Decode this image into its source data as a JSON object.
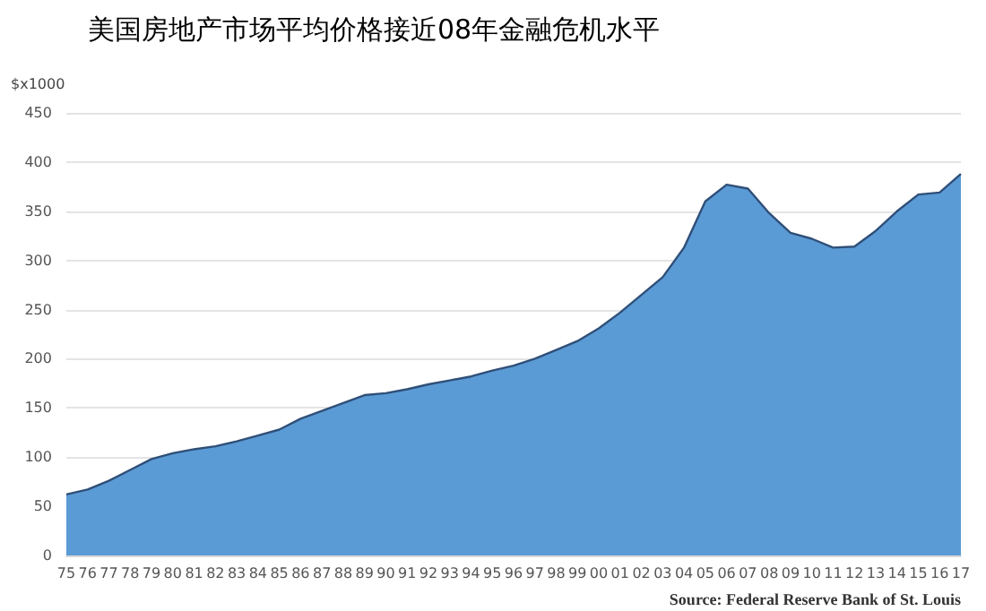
{
  "chart_data": {
    "type": "area",
    "title": "美国房地产市场平均价格接近08年金融危机水平",
    "ylabel": "$x1000",
    "categories": [
      "75",
      "76",
      "77",
      "78",
      "79",
      "80",
      "81",
      "82",
      "83",
      "84",
      "85",
      "86",
      "87",
      "88",
      "89",
      "90",
      "91",
      "92",
      "93",
      "94",
      "95",
      "96",
      "97",
      "98",
      "99",
      "00",
      "01",
      "02",
      "03",
      "04",
      "05",
      "06",
      "07",
      "08",
      "09",
      "10",
      "11",
      "12",
      "13",
      "14",
      "15",
      "16",
      "17"
    ],
    "series": [
      {
        "color": "#5b9bd5",
        "values": [
          62,
          67,
          76,
          87,
          98,
          104,
          108,
          111,
          116,
          122,
          128,
          139,
          147,
          155,
          163,
          165,
          169,
          174,
          178,
          182,
          188,
          193,
          200,
          209,
          218,
          231,
          247,
          265,
          283,
          313,
          360,
          377,
          373,
          348,
          328,
          322,
          313,
          314,
          330,
          350,
          367,
          369,
          388
        ]
      }
    ],
    "ylim": [
      0,
      450
    ],
    "yticks": [
      0,
      50,
      100,
      150,
      200,
      250,
      300,
      350,
      400,
      450
    ],
    "grid": "y",
    "marker": "none",
    "annotations": [
      "Source: Federal Reserve Bank of St. Louis"
    ]
  }
}
